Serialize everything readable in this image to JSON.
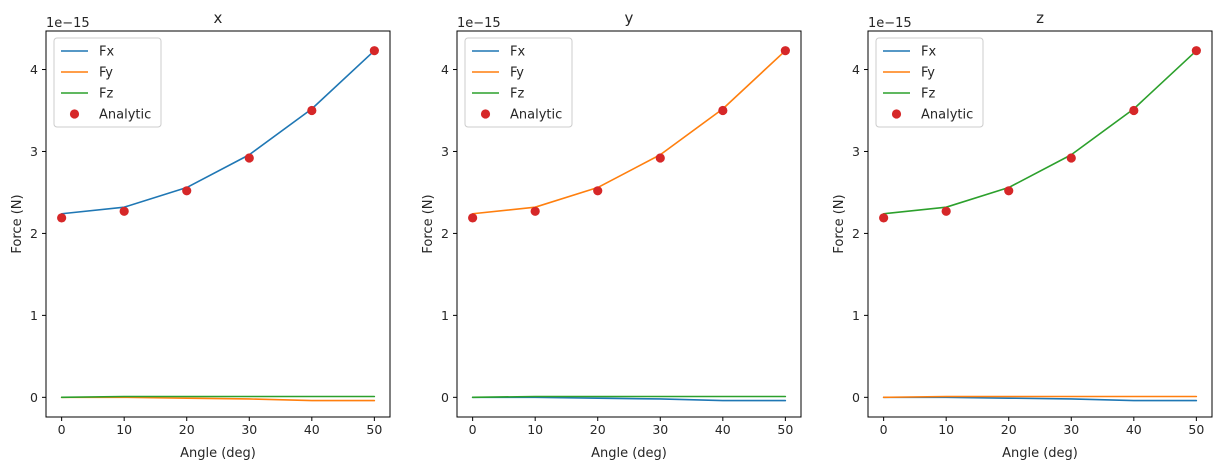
{
  "chart_data": [
    {
      "type": "line",
      "title": "x",
      "xlabel": "Angle (deg)",
      "ylabel": "Force (N)",
      "y_scale_label": "1e−15",
      "x": [
        0,
        10,
        20,
        30,
        40,
        50
      ],
      "xticks": [
        0,
        10,
        20,
        30,
        40,
        50
      ],
      "xtick_labels": [
        "0",
        "10",
        "20",
        "30",
        "40",
        "50"
      ],
      "yticks": [
        0,
        1,
        2,
        3,
        4
      ],
      "ytick_labels": [
        "0",
        "1",
        "2",
        "3",
        "4"
      ],
      "xlim": [
        -2.5,
        52.5
      ],
      "ylim": [
        -0.24,
        4.47
      ],
      "series": [
        {
          "name": "Fx",
          "kind": "line",
          "color": "#1f77b4",
          "values": [
            2.24,
            2.32,
            2.56,
            2.96,
            3.52,
            4.23
          ]
        },
        {
          "name": "Fy",
          "kind": "line",
          "color": "#ff7f0e",
          "values": [
            0.0,
            0.0,
            -0.01,
            -0.02,
            -0.04,
            -0.04
          ]
        },
        {
          "name": "Fz",
          "kind": "line",
          "color": "#2ca02c",
          "values": [
            0.0,
            0.01,
            0.01,
            0.01,
            0.01,
            0.01
          ]
        },
        {
          "name": "Analytic",
          "kind": "scatter",
          "color": "#d62728",
          "values": [
            2.19,
            2.27,
            2.52,
            2.92,
            3.5,
            4.23
          ]
        }
      ],
      "legend_position": "top-left"
    },
    {
      "type": "line",
      "title": "y",
      "xlabel": "Angle (deg)",
      "ylabel": "Force (N)",
      "y_scale_label": "1e−15",
      "x": [
        0,
        10,
        20,
        30,
        40,
        50
      ],
      "xticks": [
        0,
        10,
        20,
        30,
        40,
        50
      ],
      "xtick_labels": [
        "0",
        "10",
        "20",
        "30",
        "40",
        "50"
      ],
      "yticks": [
        0,
        1,
        2,
        3,
        4
      ],
      "ytick_labels": [
        "0",
        "1",
        "2",
        "3",
        "4"
      ],
      "xlim": [
        -2.5,
        52.5
      ],
      "ylim": [
        -0.24,
        4.47
      ],
      "series": [
        {
          "name": "Fx",
          "kind": "line",
          "color": "#1f77b4",
          "values": [
            0.0,
            0.0,
            -0.01,
            -0.02,
            -0.04,
            -0.04
          ]
        },
        {
          "name": "Fy",
          "kind": "line",
          "color": "#ff7f0e",
          "values": [
            2.24,
            2.32,
            2.56,
            2.96,
            3.52,
            4.23
          ]
        },
        {
          "name": "Fz",
          "kind": "line",
          "color": "#2ca02c",
          "values": [
            0.0,
            0.01,
            0.01,
            0.01,
            0.01,
            0.01
          ]
        },
        {
          "name": "Analytic",
          "kind": "scatter",
          "color": "#d62728",
          "values": [
            2.19,
            2.27,
            2.52,
            2.92,
            3.5,
            4.23
          ]
        }
      ],
      "legend_position": "top-left"
    },
    {
      "type": "line",
      "title": "z",
      "xlabel": "Angle (deg)",
      "ylabel": "Force (N)",
      "y_scale_label": "1e−15",
      "x": [
        0,
        10,
        20,
        30,
        40,
        50
      ],
      "xticks": [
        0,
        10,
        20,
        30,
        40,
        50
      ],
      "xtick_labels": [
        "0",
        "10",
        "20",
        "30",
        "40",
        "50"
      ],
      "yticks": [
        0,
        1,
        2,
        3,
        4
      ],
      "ytick_labels": [
        "0",
        "1",
        "2",
        "3",
        "4"
      ],
      "xlim": [
        -2.5,
        52.5
      ],
      "ylim": [
        -0.24,
        4.47
      ],
      "series": [
        {
          "name": "Fx",
          "kind": "line",
          "color": "#1f77b4",
          "values": [
            0.0,
            0.0,
            -0.01,
            -0.02,
            -0.04,
            -0.04
          ]
        },
        {
          "name": "Fy",
          "kind": "line",
          "color": "#ff7f0e",
          "values": [
            0.0,
            0.01,
            0.01,
            0.01,
            0.01,
            0.01
          ]
        },
        {
          "name": "Fz",
          "kind": "line",
          "color": "#2ca02c",
          "values": [
            2.24,
            2.32,
            2.56,
            2.96,
            3.52,
            4.23
          ]
        },
        {
          "name": "Analytic",
          "kind": "scatter",
          "color": "#d62728",
          "values": [
            2.19,
            2.27,
            2.52,
            2.92,
            3.5,
            4.23
          ]
        }
      ],
      "legend_position": "top-left"
    }
  ]
}
